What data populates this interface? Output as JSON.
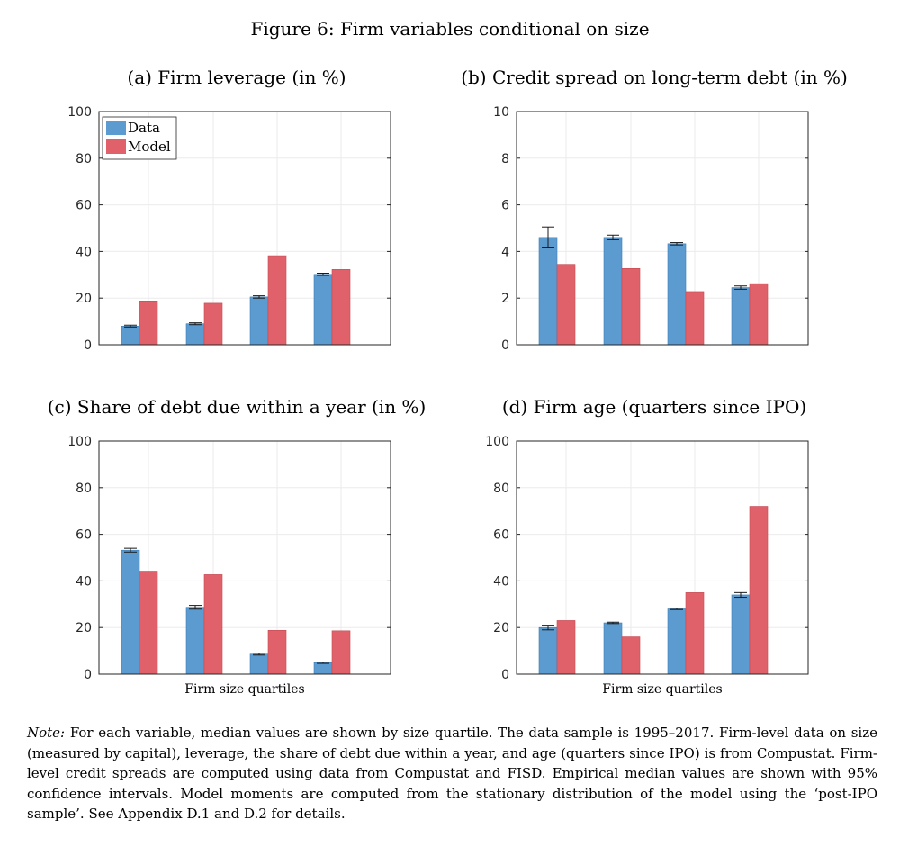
{
  "figure_title": "Figure 6: Firm variables conditional on size",
  "colors": {
    "data": "#5B9BD0",
    "model": "#E1616A",
    "axis": "#262626",
    "grid": "#EBEBEB",
    "error": "#1a1a1a"
  },
  "legend_labels": [
    "Data",
    "Model"
  ],
  "chart_data": [
    {
      "type": "bar",
      "title": "(a) Firm leverage (in %)",
      "xlabel": "",
      "ylim": [
        0,
        100
      ],
      "yticks": [
        "0",
        "20",
        "40",
        "60",
        "80",
        "100"
      ],
      "grid": true,
      "legend": "top-left",
      "series": [
        {
          "name": "Data",
          "values": [
            8,
            9,
            20.5,
            30.2
          ],
          "error": [
            0.4,
            0.4,
            0.5,
            0.5
          ]
        },
        {
          "name": "Model",
          "values": [
            18.8,
            17.8,
            38.2,
            32.3
          ]
        }
      ]
    },
    {
      "type": "bar",
      "title": "(b) Credit spread on long-term debt (in %)",
      "xlabel": "",
      "ylim": [
        0,
        10
      ],
      "yticks": [
        "0",
        "2",
        "4",
        "6",
        "8",
        "10"
      ],
      "grid": true,
      "series": [
        {
          "name": "Data",
          "values": [
            4.6,
            4.6,
            4.33,
            2.45
          ],
          "error": [
            0.45,
            0.1,
            0.05,
            0.07
          ]
        },
        {
          "name": "Model",
          "values": [
            3.45,
            3.27,
            2.28,
            2.62
          ]
        }
      ]
    },
    {
      "type": "bar",
      "title": "(c) Share of debt due within a year (in %)",
      "xlabel": "Firm size quartiles",
      "ylim": [
        0,
        100
      ],
      "yticks": [
        "0",
        "20",
        "40",
        "60",
        "80",
        "100"
      ],
      "grid": true,
      "series": [
        {
          "name": "Data",
          "values": [
            53.2,
            28.7,
            8.6,
            4.9
          ],
          "error": [
            0.8,
            0.8,
            0.4,
            0.3
          ]
        },
        {
          "name": "Model",
          "values": [
            44.2,
            42.7,
            18.8,
            18.6
          ]
        }
      ]
    },
    {
      "type": "bar",
      "title": "(d) Firm age (quarters since IPO)",
      "xlabel": "Firm size quartiles",
      "ylim": [
        0,
        100
      ],
      "yticks": [
        "0",
        "20",
        "40",
        "60",
        "80",
        "100"
      ],
      "grid": true,
      "series": [
        {
          "name": "Data",
          "values": [
            20,
            22,
            28,
            34
          ],
          "error": [
            1,
            0.3,
            0.3,
            1
          ]
        },
        {
          "name": "Model",
          "values": [
            23,
            16,
            35,
            72
          ]
        }
      ]
    }
  ],
  "note": {
    "label": "Note:",
    "text": " For each variable, median values are shown by size quartile. The data sample is 1995–2017. Firm-level data on size (measured by capital), leverage, the share of debt due within a year, and age (quarters since IPO) is from Compustat. Firm-level credit spreads are computed using data from Compustat and FISD. Empirical median values are shown with 95% confidence intervals. Model moments are computed from the stationary distribution of the model using the ‘post-IPO sample’. See Appendix D.1 and D.2 for details."
  }
}
